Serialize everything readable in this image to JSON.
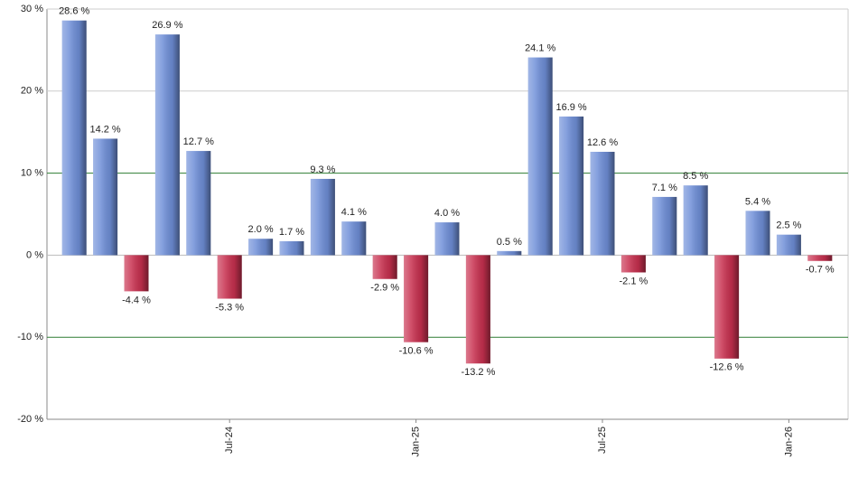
{
  "chart_data": {
    "type": "bar",
    "categories": [
      null,
      null,
      null,
      null,
      null,
      "Jul-24",
      null,
      null,
      null,
      null,
      null,
      "Jan-25",
      null,
      null,
      null,
      null,
      null,
      "Jul-25",
      null,
      null,
      null,
      null,
      null,
      "Jan-26",
      null
    ],
    "values": [
      28.6,
      14.2,
      -4.4,
      26.9,
      12.7,
      -5.3,
      2.0,
      1.7,
      9.3,
      4.1,
      -2.9,
      -10.6,
      4.0,
      -13.2,
      0.5,
      24.1,
      16.9,
      12.6,
      -2.1,
      7.1,
      8.5,
      -12.6,
      5.4,
      2.5,
      -0.7
    ],
    "value_labels": [
      "28.6 %",
      "14.2 %",
      "-4.4 %",
      "26.9 %",
      "12.7 %",
      "-5.3 %",
      "2.0 %",
      "1.7 %",
      "9.3 %",
      "4.1 %",
      "-2.9 %",
      "-10.6 %",
      "4.0 %",
      "-13.2 %",
      "0.5 %",
      "24.1 %",
      "16.9 %",
      "12.6 %",
      "-2.1 %",
      "7.1 %",
      "8.5 %",
      "-12.6 %",
      "5.4 %",
      "2.5 %",
      "-0.7 %"
    ],
    "positive_color": "#6f8fd8",
    "negative_color": "#c8304f",
    "ylim": [
      -20,
      30
    ],
    "yticks": [
      {
        "value": -20,
        "label": "-20 %"
      },
      {
        "value": -10,
        "label": "-10 %"
      },
      {
        "value": 0,
        "label": "0 %"
      },
      {
        "value": 10,
        "label": "10 %"
      },
      {
        "value": 20,
        "label": "20 %"
      },
      {
        "value": 30,
        "label": "30 %"
      }
    ],
    "grid": true,
    "grid_colors": [
      "#888888",
      "#2e7d32",
      "#bbbbbb",
      "#2e7d32",
      "#cccccc",
      "#cccccc"
    ]
  }
}
